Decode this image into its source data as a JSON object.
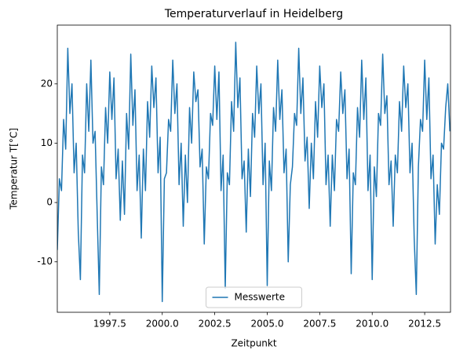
{
  "chart_data": {
    "type": "line",
    "title": "Temperaturverlauf in Heidelberg",
    "xlabel": "Zeitpunkt",
    "ylabel": "Temperatur T[°C]",
    "x": [
      1995.0,
      1995.1,
      1995.2,
      1995.3,
      1995.4,
      1995.5,
      1995.6,
      1995.7,
      1995.8,
      1995.9,
      1996.0,
      1996.1,
      1996.2,
      1996.3,
      1996.4,
      1996.5,
      1996.6,
      1996.7,
      1996.8,
      1996.9,
      1997.0,
      1997.1,
      1997.2,
      1997.3,
      1997.4,
      1997.5,
      1997.6,
      1997.7,
      1997.8,
      1997.9,
      1998.0,
      1998.1,
      1998.2,
      1998.3,
      1998.4,
      1998.5,
      1998.6,
      1998.7,
      1998.8,
      1998.9,
      1999.0,
      1999.1,
      1999.2,
      1999.3,
      1999.4,
      1999.5,
      1999.6,
      1999.7,
      1999.8,
      1999.9,
      2000.0,
      2000.1,
      2000.2,
      2000.3,
      2000.4,
      2000.5,
      2000.6,
      2000.7,
      2000.8,
      2000.9,
      2001.0,
      2001.1,
      2001.2,
      2001.3,
      2001.4,
      2001.5,
      2001.6,
      2001.7,
      2001.8,
      2001.9,
      2002.0,
      2002.1,
      2002.2,
      2002.3,
      2002.4,
      2002.5,
      2002.6,
      2002.7,
      2002.8,
      2002.9,
      2003.0,
      2003.1,
      2003.2,
      2003.3,
      2003.4,
      2003.5,
      2003.6,
      2003.7,
      2003.8,
      2003.9,
      2004.0,
      2004.1,
      2004.2,
      2004.3,
      2004.4,
      2004.5,
      2004.6,
      2004.7,
      2004.8,
      2004.9,
      2005.0,
      2005.1,
      2005.2,
      2005.3,
      2005.4,
      2005.5,
      2005.6,
      2005.7,
      2005.8,
      2005.9,
      2006.0,
      2006.1,
      2006.2,
      2006.3,
      2006.4,
      2006.5,
      2006.6,
      2006.7,
      2006.8,
      2006.9,
      2007.0,
      2007.1,
      2007.2,
      2007.3,
      2007.4,
      2007.5,
      2007.6,
      2007.7,
      2007.8,
      2007.9,
      2008.0,
      2008.1,
      2008.2,
      2008.3,
      2008.4,
      2008.5,
      2008.6,
      2008.7,
      2008.8,
      2008.9,
      2009.0,
      2009.1,
      2009.2,
      2009.3,
      2009.4,
      2009.5,
      2009.6,
      2009.7,
      2009.8,
      2009.9,
      2010.0,
      2010.1,
      2010.2,
      2010.3,
      2010.4,
      2010.5,
      2010.6,
      2010.7,
      2010.8,
      2010.9,
      2011.0,
      2011.1,
      2011.2,
      2011.3,
      2011.4,
      2011.5,
      2011.6,
      2011.7,
      2011.8,
      2011.9,
      2012.0,
      2012.1,
      2012.2,
      2012.3,
      2012.4,
      2012.5,
      2012.6,
      2012.7,
      2012.8,
      2012.9,
      2013.0,
      2013.1,
      2013.2,
      2013.3,
      2013.4,
      2013.5,
      2013.6,
      2013.7
    ],
    "series": [
      {
        "name": "Messwerte",
        "color": "#1f77b4",
        "values": [
          -8,
          4,
          2,
          14,
          9,
          26,
          15,
          20,
          5,
          10,
          -5,
          -13,
          8,
          5,
          20,
          12,
          24,
          10,
          12,
          -2,
          -15.5,
          6,
          3,
          16,
          10,
          22,
          14,
          21,
          4,
          9,
          -3,
          7,
          -2,
          15,
          9,
          25,
          13,
          19,
          2,
          8,
          -6,
          9,
          2,
          17,
          11,
          23,
          16,
          21,
          5,
          11,
          -16.7,
          4,
          5,
          14,
          12,
          24,
          15,
          20,
          3,
          10,
          -4,
          8,
          0,
          16,
          10,
          22,
          17,
          19,
          6,
          9,
          -7,
          6,
          4,
          15,
          13,
          23,
          14,
          22,
          2,
          8,
          -14.5,
          5,
          3,
          17,
          12,
          27,
          16,
          21,
          4,
          7,
          -5,
          9,
          1,
          15,
          11,
          23,
          15,
          20,
          3,
          10,
          -14,
          7,
          2,
          16,
          12,
          24,
          14,
          19,
          5,
          9,
          -10,
          3,
          6,
          15,
          13,
          26,
          15,
          21,
          7,
          11,
          -1,
          10,
          4,
          17,
          11,
          23,
          16,
          20,
          3,
          8,
          -4,
          8,
          2,
          14,
          12,
          22,
          15,
          19,
          4,
          9,
          -12,
          5,
          3,
          16,
          11,
          24,
          14,
          21,
          2,
          8,
          -13,
          6,
          1,
          15,
          13,
          25,
          15,
          18,
          3,
          7,
          -4,
          8,
          5,
          17,
          12,
          23,
          16,
          20,
          5,
          10,
          -6,
          -15.5,
          6,
          14,
          12,
          24,
          14,
          21,
          4,
          8,
          -7,
          3,
          -2,
          10,
          9,
          16,
          20,
          12
        ]
      }
    ],
    "xlim": [
      1995.0,
      2013.73
    ],
    "ylim": [
      -18.5,
      29.9
    ],
    "xticks": [
      {
        "value": 1997.5,
        "label": "1997.5"
      },
      {
        "value": 2000.0,
        "label": "2000.0"
      },
      {
        "value": 2002.5,
        "label": "2002.5"
      },
      {
        "value": 2005.0,
        "label": "2005.0"
      },
      {
        "value": 2007.5,
        "label": "2007.5"
      },
      {
        "value": 2010.0,
        "label": "2010.0"
      },
      {
        "value": 2012.5,
        "label": "2012.5"
      }
    ],
    "yticks": [
      -10,
      0,
      10,
      20
    ],
    "grid": false,
    "legend": "lower center"
  }
}
